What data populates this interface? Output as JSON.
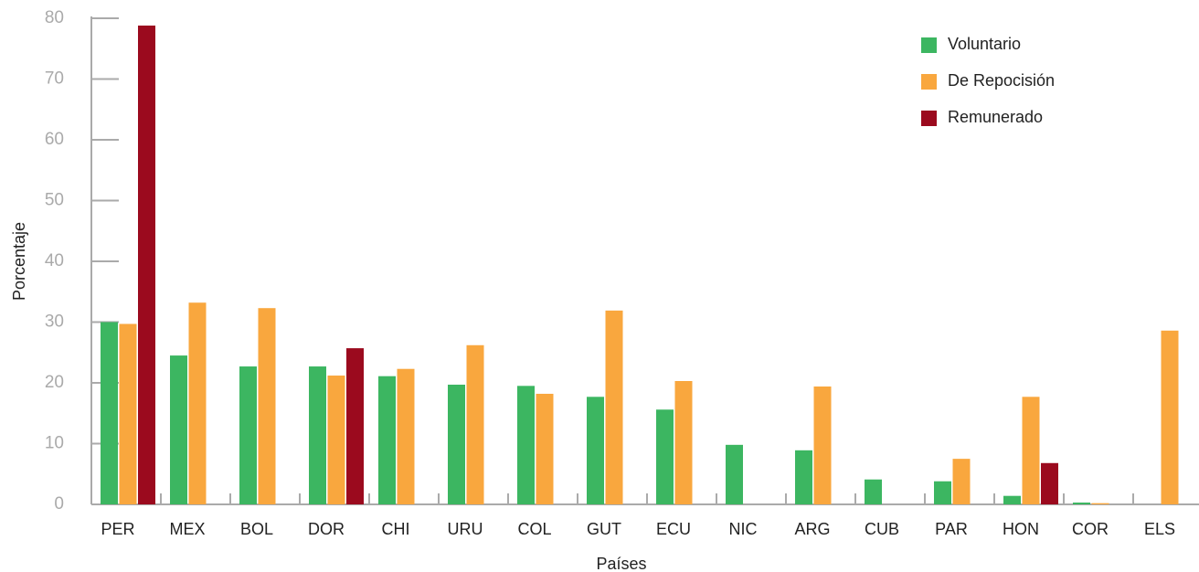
{
  "chart_data": {
    "type": "bar",
    "x_label": "Países",
    "y_label": "Porcentaje",
    "categories": [
      "PER",
      "MEX",
      "BOL",
      "DOR",
      "CHI",
      "URU",
      "COL",
      "GUT",
      "ECU",
      "NIC",
      "ARG",
      "CUB",
      "PAR",
      "HON",
      "COR",
      "ELS"
    ],
    "series": [
      {
        "name": "Voluntario",
        "color": "#3cb661",
        "values": [
          30,
          24.5,
          22.7,
          22.7,
          21.1,
          19.7,
          19.5,
          17.7,
          15.6,
          9.8,
          8.9,
          4.1,
          3.8,
          1.4,
          0.3,
          null
        ]
      },
      {
        "name": "De Repocisión",
        "color": "#f9a73e",
        "values": [
          29.7,
          33.2,
          32.3,
          21.2,
          22.3,
          26.2,
          18.2,
          31.9,
          20.3,
          null,
          19.4,
          null,
          7.5,
          17.7,
          0.2,
          28.6
        ]
      },
      {
        "name": "Remunerado",
        "color": "#9b0a1e",
        "values": [
          78.8,
          null,
          null,
          25.7,
          null,
          null,
          null,
          null,
          null,
          null,
          null,
          null,
          null,
          6.8,
          null,
          null
        ]
      }
    ],
    "ylim": [
      0,
      80
    ],
    "yticks": [
      0,
      10,
      20,
      30,
      40,
      50,
      60,
      70,
      80
    ],
    "legend": "top-right"
  }
}
